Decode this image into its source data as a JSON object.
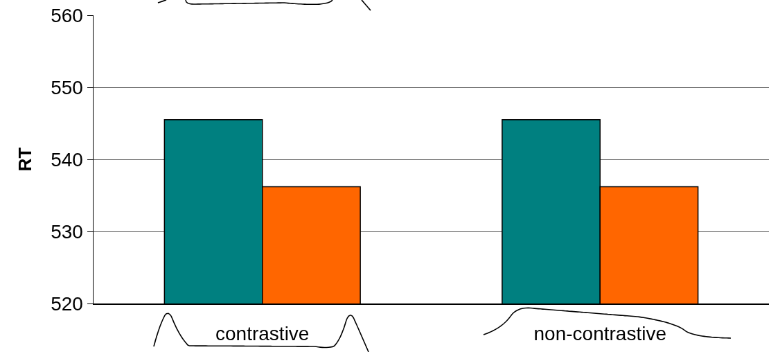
{
  "chart_data": {
    "type": "bar",
    "ylabel": "RT",
    "categories": [
      "contrastive",
      "non-contrastive"
    ],
    "series": [
      {
        "color": "#008080",
        "values": [
          545.5,
          545.5
        ]
      },
      {
        "color": "#ff6600",
        "values": [
          536.2,
          536.2
        ]
      }
    ],
    "ylim": [
      520,
      560
    ],
    "yticks": [
      520,
      530,
      540,
      550,
      560
    ],
    "grid": "y"
  }
}
